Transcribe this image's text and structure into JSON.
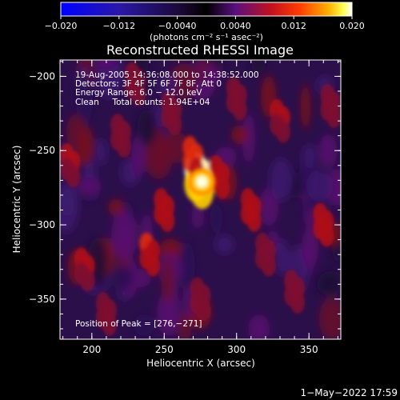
{
  "chart_data": {
    "type": "heatmap",
    "title": "Reconstructed RHESSI Image",
    "xlabel": "Heliocentric X (arcsec)",
    "ylabel": "Heliocentric Y (arcsec)",
    "xlim": [
      178,
      372
    ],
    "ylim": [
      -377,
      -189
    ],
    "x_ticks": [
      200,
      250,
      300,
      350
    ],
    "y_ticks": [
      -200,
      -250,
      -300,
      -350
    ],
    "x_tick_labels": [
      "200",
      "250",
      "300",
      "350"
    ],
    "y_tick_labels": [
      "−200",
      "−250",
      "−300",
      "−350"
    ],
    "colorbar": {
      "min": -0.02,
      "max": 0.02,
      "ticks": [
        -0.02,
        -0.012,
        -0.004,
        0.004,
        0.012,
        0.02
      ],
      "tick_labels": [
        "−0.020",
        "−0.012",
        "−0.0040",
        "0.0040",
        "0.012",
        "0.020"
      ],
      "units_label": "(photons cm⁻² s⁻¹ asec⁻²)",
      "colormap": [
        "#0000ff",
        "#3a1c8a",
        "#000000",
        "#5a1080",
        "#b01020",
        "#ff3000",
        "#ff9000",
        "#ffff40",
        "#ffffff"
      ]
    },
    "annotations": [
      "19-Aug-2005 14:36:08.000 to 14:38:52.000",
      "Detectors: 3F 4F 5F 6F 7F 8F, Att 0",
      "Energy Range: 6.0 − 12.0 keV",
      "Clean     Total counts: 1.94E+04"
    ],
    "peak_label": "Position of Peak = [276,−271]",
    "peak": {
      "x": 276,
      "y": -271,
      "value": 0.02
    },
    "sources": [
      {
        "x": 274,
        "y": -270,
        "value": 0.02,
        "note": "bright peak"
      },
      {
        "x": 270,
        "y": -255,
        "value": 0.011
      },
      {
        "x": 288,
        "y": -268,
        "value": 0.009
      },
      {
        "x": 240,
        "y": -320,
        "value": 0.01
      },
      {
        "x": 250,
        "y": -290,
        "value": 0.008
      },
      {
        "x": 310,
        "y": -290,
        "value": 0.008
      },
      {
        "x": 330,
        "y": -230,
        "value": 0.007
      },
      {
        "x": 185,
        "y": -260,
        "value": 0.007
      },
      {
        "x": 195,
        "y": -330,
        "value": 0.007
      },
      {
        "x": 360,
        "y": -300,
        "value": 0.009
      },
      {
        "x": 365,
        "y": -220,
        "value": 0.006
      },
      {
        "x": 220,
        "y": -240,
        "value": 0.006
      },
      {
        "x": 275,
        "y": -350,
        "value": 0.006
      },
      {
        "x": 340,
        "y": -345,
        "value": 0.005
      },
      {
        "x": 210,
        "y": -360,
        "value": 0.005
      },
      {
        "x": 300,
        "y": -215,
        "value": 0.005
      },
      {
        "x": 230,
        "y": -205,
        "value": 0.005
      },
      {
        "x": 320,
        "y": -320,
        "value": 0.006
      },
      {
        "x": 255,
        "y": -225,
        "value": 0.005
      }
    ]
  },
  "footer": {
    "date": "1−May−2022 17:59"
  }
}
